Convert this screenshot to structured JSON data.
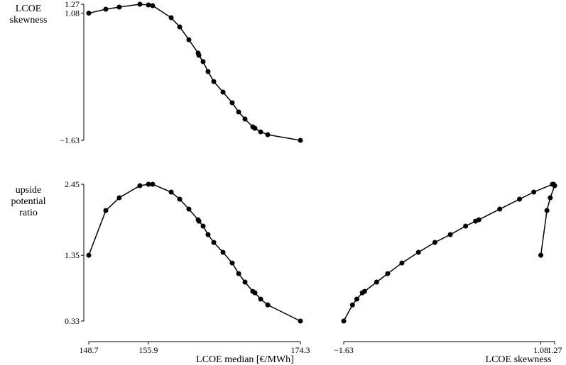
{
  "chart_data": [
    {
      "type": "line",
      "color": "#000000",
      "ylabel": [
        "LCOE",
        "skewness"
      ],
      "x": [
        148.7,
        150.76,
        152.39,
        154.88,
        155.92,
        156.43,
        158.67,
        159.7,
        160.81,
        161.93,
        162.02,
        162.53,
        163.13,
        163.82,
        164.94,
        166.05,
        166.83,
        167.6,
        168.54,
        168.8,
        169.49,
        170.35,
        174.3
      ],
      "values": [
        1.08,
        1.164,
        1.21,
        1.27,
        1.255,
        1.24,
        0.983,
        0.787,
        0.515,
        0.228,
        0.182,
        0.046,
        -0.165,
        -0.377,
        -0.603,
        -0.83,
        -1.026,
        -1.177,
        -1.343,
        -1.374,
        -1.45,
        -1.51,
        -1.63
      ],
      "xlim": [
        148.7,
        174.3
      ],
      "ylim": [
        -1.63,
        1.27
      ],
      "yticks": [
        1.27,
        1.08,
        {
          "value": -1.63,
          "label": "−1.63"
        }
      ]
    },
    {
      "type": "line",
      "color": "#000000",
      "ylabel": [
        "upside",
        "potential",
        "ratio"
      ],
      "xlabel": "LCOE median [€/MWh]",
      "x": [
        148.7,
        150.76,
        152.39,
        154.88,
        155.92,
        156.43,
        158.67,
        159.7,
        160.81,
        161.93,
        162.02,
        162.53,
        163.13,
        163.82,
        164.94,
        166.05,
        166.83,
        167.6,
        168.54,
        168.8,
        169.49,
        170.35,
        174.3
      ],
      "values": [
        1.35,
        2.043,
        2.241,
        2.428,
        2.45,
        2.45,
        2.329,
        2.219,
        2.065,
        1.9,
        1.878,
        1.802,
        1.67,
        1.549,
        1.395,
        1.23,
        1.065,
        0.934,
        0.79,
        0.768,
        0.67,
        0.58,
        0.33
      ],
      "xlim": [
        148.7,
        174.3
      ],
      "ylim": [
        0.33,
        2.45
      ],
      "xticks": [
        148.7,
        155.9,
        174.3
      ],
      "yticks": [
        2.45,
        1.35,
        0.33
      ]
    },
    {
      "type": "line",
      "color": "#000000",
      "xlabel": "LCOE skewness",
      "x": [
        1.08,
        1.164,
        1.21,
        1.27,
        1.255,
        1.24,
        0.983,
        0.787,
        0.515,
        0.228,
        0.182,
        0.046,
        -0.165,
        -0.377,
        -0.603,
        -0.83,
        -1.026,
        -1.177,
        -1.343,
        -1.374,
        -1.45,
        -1.51,
        -1.63
      ],
      "values": [
        1.35,
        2.043,
        2.241,
        2.428,
        2.45,
        2.45,
        2.329,
        2.219,
        2.065,
        1.9,
        1.878,
        1.802,
        1.67,
        1.549,
        1.395,
        1.23,
        1.065,
        0.934,
        0.79,
        0.768,
        0.67,
        0.58,
        0.33
      ],
      "xlim": [
        -1.63,
        1.27
      ],
      "ylim": [
        0.33,
        2.45
      ],
      "xticks": [
        {
          "value": -1.63,
          "label": "−1.63"
        },
        1.08,
        1.27
      ]
    }
  ]
}
